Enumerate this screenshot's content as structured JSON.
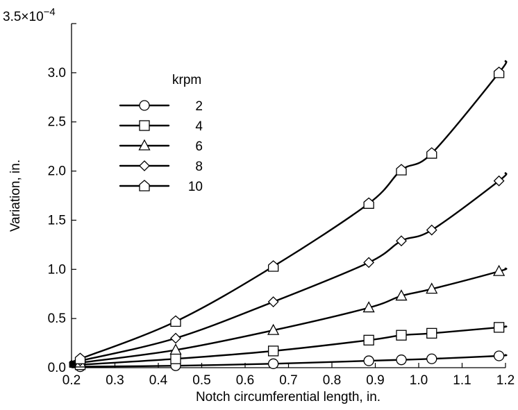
{
  "chart_data": {
    "type": "line",
    "xlabel": "Notch circumferential length, in.",
    "ylabel": "Variation, in.",
    "xlim": [
      0.2,
      1.2
    ],
    "ylim": [
      0.0,
      3.5
    ],
    "x_ticks": [
      "0.2",
      "0.3",
      "0.4",
      "0.5",
      "0.6",
      "0.7",
      "0.8",
      "0.9",
      "1.0",
      "1.1",
      "1.2"
    ],
    "y_ticks": [
      "0.0",
      "0.5",
      "1.0",
      "1.5",
      "2.0",
      "2.5",
      "3.0"
    ],
    "y_top_label": "3.5×10",
    "y_multiplier_exponent": "−4",
    "legend_title": "krpm",
    "legend_placement": "upper-left",
    "grid": false,
    "series": [
      {
        "name": "2",
        "marker": "circle",
        "x": [
          0.22,
          0.44,
          0.665,
          0.885,
          0.96,
          1.03,
          1.185
        ],
        "y": [
          0.01,
          0.02,
          0.04,
          0.07,
          0.08,
          0.09,
          0.12
        ],
        "curve_end": [
          1.2,
          0.13
        ]
      },
      {
        "name": "4",
        "marker": "square",
        "x": [
          0.22,
          0.44,
          0.665,
          0.885,
          0.96,
          1.03,
          1.185
        ],
        "y": [
          0.03,
          0.09,
          0.17,
          0.28,
          0.33,
          0.35,
          0.41
        ],
        "curve_end": [
          1.2,
          0.42
        ]
      },
      {
        "name": "6",
        "marker": "triangle",
        "x": [
          0.22,
          0.44,
          0.665,
          0.885,
          0.96,
          1.03,
          1.185
        ],
        "y": [
          0.05,
          0.18,
          0.38,
          0.61,
          0.73,
          0.8,
          0.98
        ],
        "curve_end": [
          1.2,
          1.01
        ]
      },
      {
        "name": "8",
        "marker": "diamond",
        "x": [
          0.22,
          0.44,
          0.665,
          0.885,
          0.96,
          1.03,
          1.185
        ],
        "y": [
          0.07,
          0.3,
          0.67,
          1.07,
          1.29,
          1.4,
          1.9
        ],
        "curve_end": [
          1.2,
          1.98
        ]
      },
      {
        "name": "10",
        "marker": "pentagon",
        "x": [
          0.22,
          0.44,
          0.665,
          0.885,
          0.96,
          1.03,
          1.185
        ],
        "y": [
          0.09,
          0.47,
          1.03,
          1.67,
          2.01,
          2.18,
          3.0
        ],
        "curve_end": [
          1.2,
          3.12
        ]
      }
    ]
  }
}
